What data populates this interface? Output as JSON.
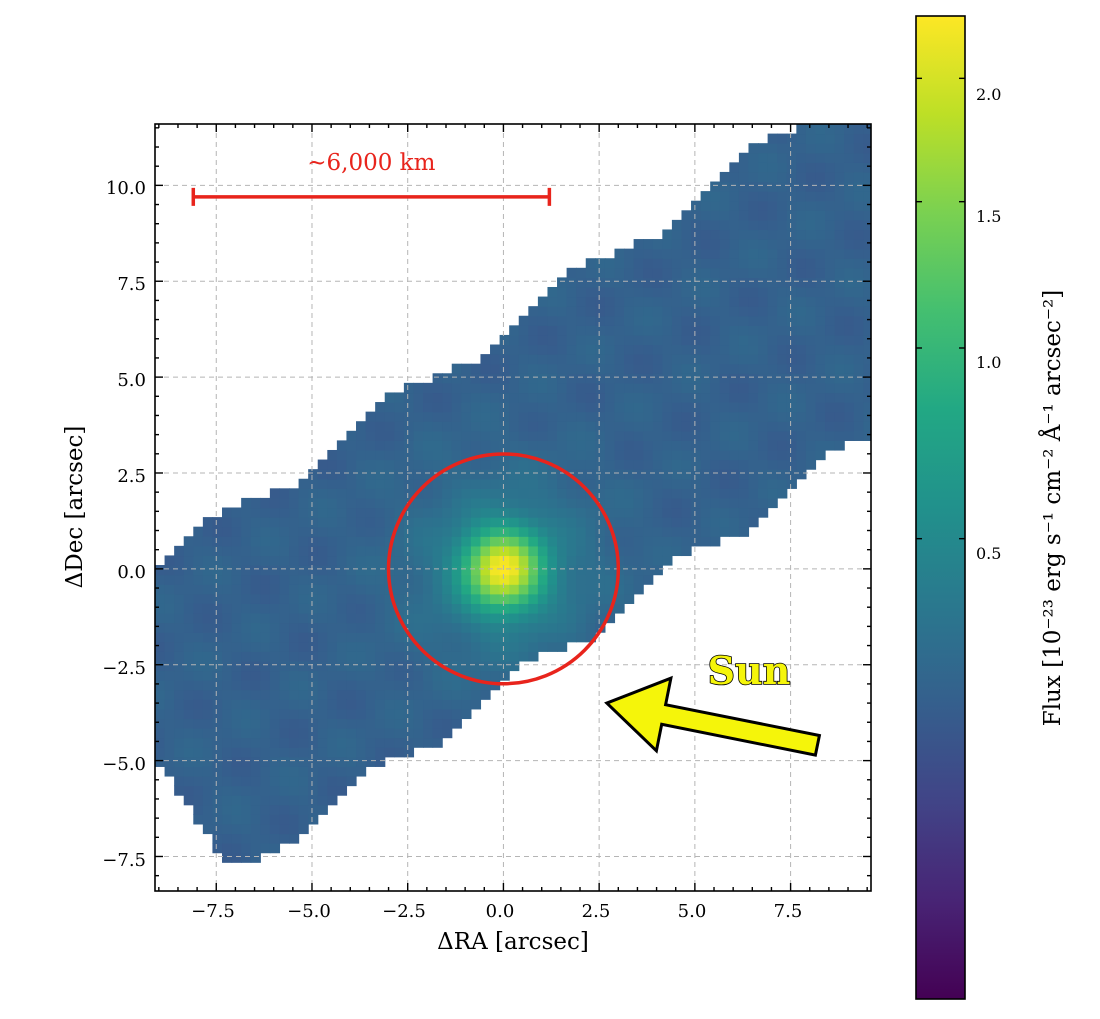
{
  "chart_data": {
    "type": "heatmap",
    "title": "",
    "xlabel": "ΔRA [arcsec]",
    "ylabel": "ΔDec [arcsec]",
    "xlim": [
      -9.1,
      9.6
    ],
    "ylim": [
      -8.4,
      11.6
    ],
    "xticks": [
      -7.5,
      -5.0,
      -2.5,
      0.0,
      2.5,
      5.0,
      7.5
    ],
    "yticks": [
      -7.5,
      -5.0,
      -2.5,
      0.0,
      2.5,
      5.0,
      7.5,
      10.0
    ],
    "xtick_labels": [
      "−7.5",
      "−5.0",
      "−2.5",
      "0.0",
      "2.5",
      "5.0",
      "7.5"
    ],
    "ytick_labels": [
      "−7.5",
      "−5.0",
      "−2.5",
      "0.0",
      "2.5",
      "5.0",
      "7.5",
      "10.0"
    ],
    "grid": true,
    "colormap": "viridis",
    "colorbar": {
      "label": "Flux [10⁻²³ erg s⁻¹ cm⁻² Å⁻¹ arcsec⁻²]",
      "range": [
        0.0,
        2.28
      ],
      "ticks": [
        0.5,
        1.0,
        1.5,
        2.0
      ],
      "tick_labels": [
        "0.5",
        "1.0",
        "1.5",
        "2.0"
      ]
    },
    "map": {
      "center_ra": 0.0,
      "center_dec": 0.0,
      "peak_flux": 2.1,
      "background_flux": 0.22,
      "aperture_radius_arcsec": 3.0
    },
    "annotations": {
      "scale_bar": {
        "label": "~6,000 km",
        "x_start": -8.1,
        "x_end": 1.2,
        "y": 9.7
      },
      "sun_label": "Sun",
      "sun_arrow": {
        "from": [
          8.2,
          -4.6
        ],
        "to": [
          2.7,
          -3.5
        ]
      }
    }
  },
  "colors": {
    "aperture": "#e8241c",
    "scale_bar": "#e8241c",
    "arrow_fill": "#f5f50a",
    "arrow_stroke": "#000000",
    "grid": "#b5b5b5"
  }
}
